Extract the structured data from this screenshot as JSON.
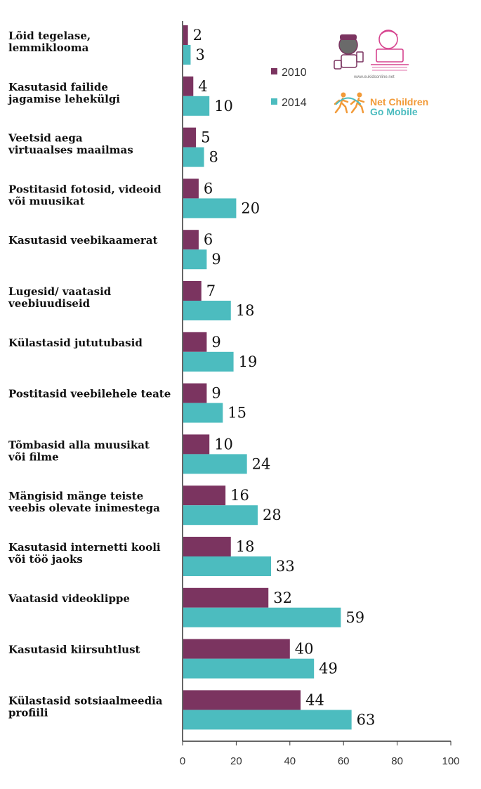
{
  "chart_data": {
    "type": "bar",
    "orientation": "horizontal",
    "categories": [
      [
        "Lõid tegelase,",
        "lemmiklooma"
      ],
      [
        "Kasutasid failide",
        "jagamise lehekülgi"
      ],
      [
        "Veetsid aega",
        "virtuaalses maailmas"
      ],
      [
        "Postitasid fotosid, videoid",
        "või muusikat"
      ],
      [
        "Kasutasid veebikaamerat"
      ],
      [
        "Lugesid/ vaatasid",
        "veebiuudiseid"
      ],
      [
        "Külastasid jututubasid"
      ],
      [
        "Postitasid veebilehele teate"
      ],
      [
        "Tõmbasid alla muusikat",
        "või filme"
      ],
      [
        "Mängisid mänge teiste",
        "veebis olevate inimestega"
      ],
      [
        "Kasutasid internetti kooli",
        "või töö jaoks"
      ],
      [
        "Vaatasid videoklippe"
      ],
      [
        "Kasutasid kiirsuhtlust"
      ],
      [
        "Külastasid sotsiaalmeedia",
        "profiili"
      ]
    ],
    "series": [
      {
        "name": "2010",
        "color": "#7b3460",
        "values": [
          2,
          4,
          5,
          6,
          6,
          7,
          9,
          9,
          10,
          16,
          18,
          32,
          40,
          44
        ]
      },
      {
        "name": "2014",
        "color": "#4cbcbf",
        "values": [
          3,
          10,
          8,
          20,
          9,
          18,
          19,
          15,
          24,
          28,
          33,
          59,
          49,
          63
        ]
      }
    ],
    "xlim": [
      0,
      100
    ],
    "xticks": [
      "0",
      "20",
      "40",
      "60",
      "80",
      "100"
    ],
    "legend": "top-right",
    "grid": false,
    "title": "",
    "xlabel": "",
    "ylabel": ""
  },
  "logos": {
    "url_text": "www.eukidsonline.net",
    "brand_line1": "Net Children",
    "brand_line2": "Go Mobile",
    "brand_color": "#f29a38",
    "brand_color2": "#4cbcbf"
  }
}
